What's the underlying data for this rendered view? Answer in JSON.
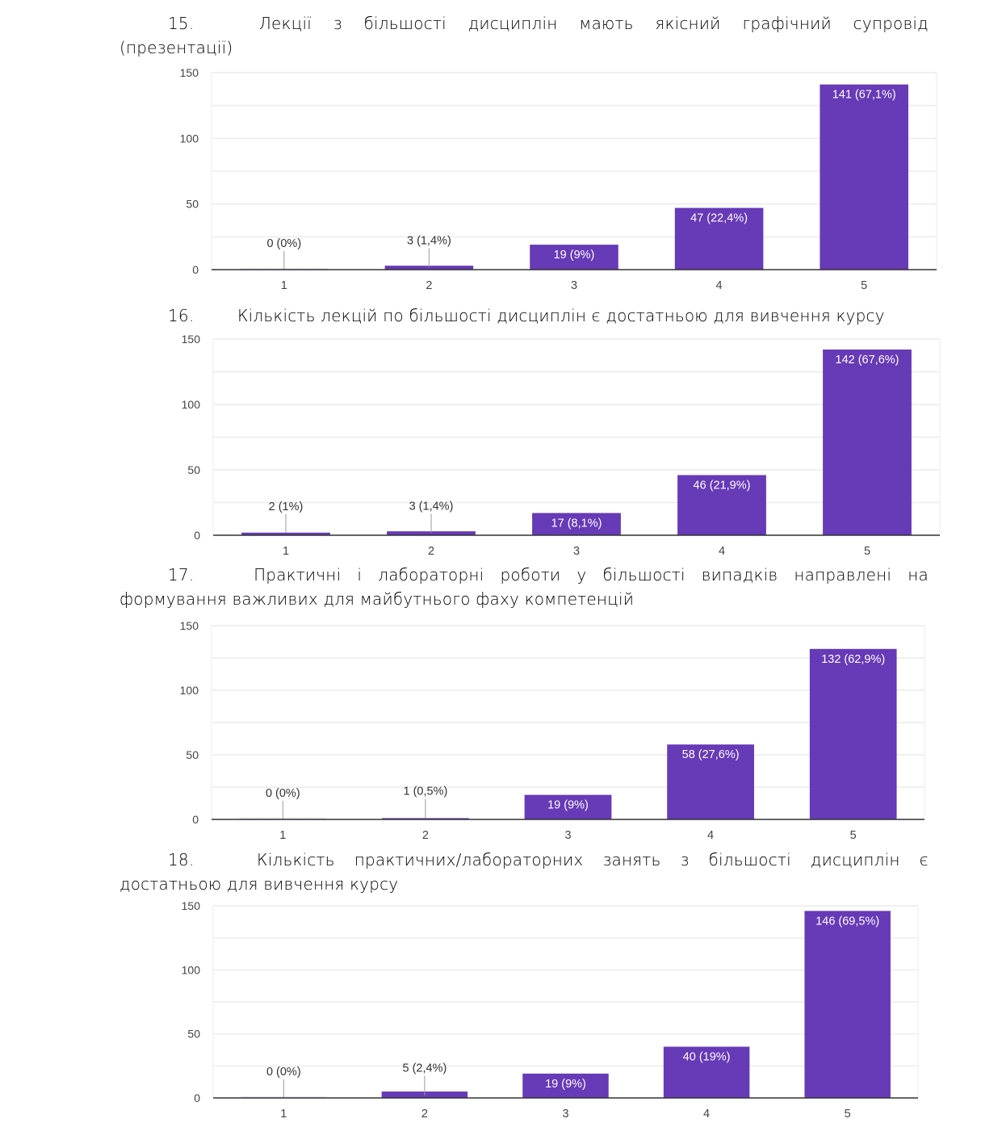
{
  "questions": [
    {
      "number": "15.",
      "title_line1": [
        "Лекції",
        "з",
        "більшості",
        "дисциплін",
        "мають",
        "якісний",
        "графічний",
        "супровід"
      ],
      "title_line2": "(презентації)"
    },
    {
      "number": "16.",
      "title_line1": [
        "Кількість лекцій по більшості дисциплін є достатньою для вивчення курсу"
      ],
      "title_line2": ""
    },
    {
      "number": "17.",
      "title_line1": [
        "Практичні",
        "і",
        "лабораторні",
        "роботи",
        "у",
        "більшості",
        "випадків",
        "направлені",
        "на"
      ],
      "title_line2": "формування важливих для майбутнього фаху компетенцій"
    },
    {
      "number": "18.",
      "title_line1": [
        "Кількість",
        "практичних/лабораторних",
        "занять",
        "з",
        "більшості",
        "дисциплін",
        "є"
      ],
      "title_line2": "достатньою для вивчення курсу"
    }
  ],
  "colors": {
    "bar": "#673ab7",
    "grid": "#ececec",
    "axis": "#333333",
    "tick_text": "#444444",
    "label_inside": "#ffffff",
    "label_outside": "#333333"
  },
  "chart_data": [
    {
      "type": "bar",
      "title": "15. Лекції з більшості дисциплін мають якісний графічний супровід (презентації)",
      "categories": [
        "1",
        "2",
        "3",
        "4",
        "5"
      ],
      "values": [
        0,
        3,
        19,
        47,
        141
      ],
      "labels": [
        "0 (0%)",
        "3 (1,4%)",
        "19 (9%)",
        "47 (22,4%)",
        "141 (67,1%)"
      ],
      "yticks": [
        "0",
        "50",
        "100",
        "150"
      ],
      "ylim": [
        0,
        150
      ],
      "grid": true,
      "xlabel": "",
      "ylabel": ""
    },
    {
      "type": "bar",
      "title": "16. Кількість лекцій по більшості дисциплін є достатньою для вивчення курсу",
      "categories": [
        "1",
        "2",
        "3",
        "4",
        "5"
      ],
      "values": [
        2,
        3,
        17,
        46,
        142
      ],
      "labels": [
        "2 (1%)",
        "3 (1,4%)",
        "17 (8,1%)",
        "46 (21,9%)",
        "142 (67,6%)"
      ],
      "yticks": [
        "0",
        "50",
        "100",
        "150"
      ],
      "ylim": [
        0,
        150
      ],
      "grid": true,
      "xlabel": "",
      "ylabel": ""
    },
    {
      "type": "bar",
      "title": "17. Практичні і лабораторні роботи у більшості випадків направлені на формування важливих для майбутнього фаху компетенцій",
      "categories": [
        "1",
        "2",
        "3",
        "4",
        "5"
      ],
      "values": [
        0,
        1,
        19,
        58,
        132
      ],
      "labels": [
        "0 (0%)",
        "1 (0,5%)",
        "19 (9%)",
        "58 (27,6%)",
        "132 (62,9%)"
      ],
      "yticks": [
        "0",
        "50",
        "100",
        "150"
      ],
      "ylim": [
        0,
        150
      ],
      "grid": true,
      "xlabel": "",
      "ylabel": ""
    },
    {
      "type": "bar",
      "title": "18. Кількість практичних/лабораторних занять з більшості дисциплін є достатньою для вивчення курсу",
      "categories": [
        "1",
        "2",
        "3",
        "4",
        "5"
      ],
      "values": [
        0,
        5,
        19,
        40,
        146
      ],
      "labels": [
        "0 (0%)",
        "5 (2,4%)",
        "19 (9%)",
        "40 (19%)",
        "146 (69,5%)"
      ],
      "yticks": [
        "0",
        "50",
        "100",
        "150"
      ],
      "ylim": [
        0,
        150
      ],
      "grid": true,
      "xlabel": "",
      "ylabel": ""
    }
  ]
}
